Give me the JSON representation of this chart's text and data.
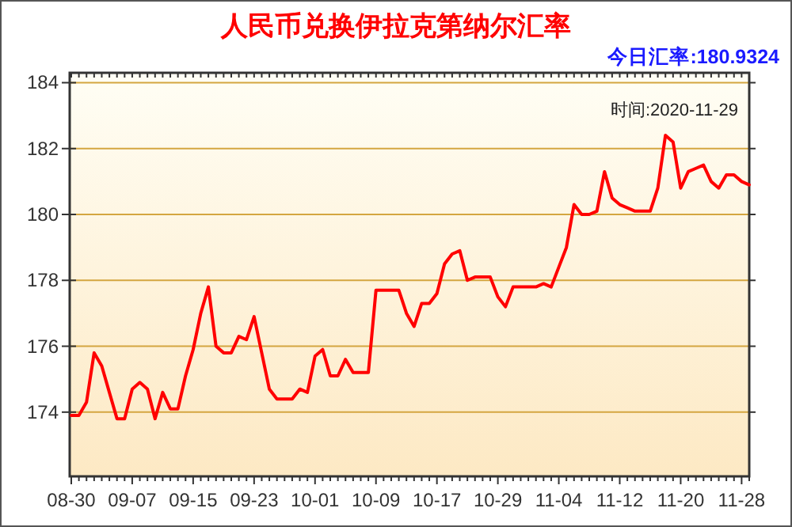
{
  "chart_data": {
    "type": "line",
    "title": "人民币兑换伊拉克第纳尔汇率",
    "annotations": [
      "今日汇率:180.9324",
      "时间:2020-11-29"
    ],
    "categories": [
      "08-30",
      null,
      null,
      null,
      null,
      null,
      null,
      null,
      "09-07",
      null,
      null,
      null,
      null,
      null,
      null,
      null,
      "09-15",
      null,
      null,
      null,
      null,
      null,
      null,
      null,
      "09-23",
      null,
      null,
      null,
      null,
      null,
      null,
      null,
      "10-01",
      null,
      null,
      null,
      null,
      null,
      null,
      null,
      "10-09",
      null,
      null,
      null,
      null,
      null,
      null,
      null,
      "10-17",
      null,
      null,
      null,
      null,
      null,
      null,
      null,
      "10-29",
      null,
      null,
      null,
      null,
      null,
      null,
      null,
      "11-04",
      null,
      null,
      null,
      null,
      null,
      null,
      null,
      "11-12",
      null,
      null,
      null,
      null,
      null,
      null,
      null,
      "11-20",
      null,
      null,
      null,
      null,
      null,
      null,
      null,
      "11-28",
      null
    ],
    "series": [
      {
        "color": "#ff0000",
        "values": [
          173.9,
          173.9,
          174.3,
          175.8,
          175.4,
          174.6,
          173.8,
          173.8,
          174.7,
          174.9,
          174.7,
          173.8,
          174.6,
          174.1,
          174.1,
          175.1,
          175.9,
          177.0,
          177.8,
          176.0,
          175.8,
          175.8,
          176.3,
          176.2,
          176.9,
          175.8,
          174.7,
          174.4,
          174.4,
          174.4,
          174.7,
          174.6,
          175.7,
          175.9,
          175.1,
          175.1,
          175.6,
          175.2,
          175.2,
          175.2,
          177.7,
          177.7,
          177.7,
          177.7,
          177.0,
          176.6,
          177.3,
          177.3,
          177.6,
          178.5,
          178.8,
          178.9,
          178.0,
          178.1,
          178.1,
          178.1,
          177.5,
          177.2,
          177.8,
          177.8,
          177.8,
          177.8,
          177.9,
          177.8,
          178.4,
          179.0,
          180.3,
          180.0,
          180.0,
          180.1,
          181.3,
          180.5,
          180.3,
          180.2,
          180.1,
          180.1,
          180.1,
          180.8,
          182.4,
          182.2,
          180.8,
          181.3,
          181.4,
          181.5,
          181.0,
          180.8,
          181.2,
          181.2,
          181.0,
          180.9
        ]
      }
    ],
    "ylim": [
      172.05,
      184.3
    ],
    "yticks": [
      174,
      176,
      178,
      180,
      182,
      184
    ],
    "grid": "y"
  }
}
